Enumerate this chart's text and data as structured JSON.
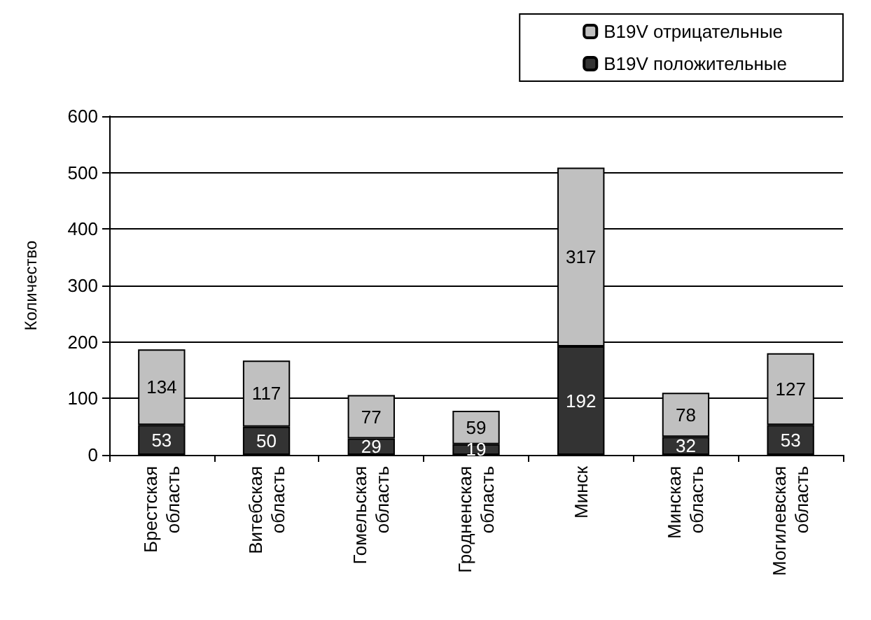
{
  "chart_data": {
    "type": "bar",
    "stacked": true,
    "ylabel": "Количество",
    "categories": [
      "Брестская\nобласть",
      "Витебская\nобласть",
      "Гомельская\nобласть",
      "Гродненская\nобласть",
      "Минск",
      "Минская\nобласть",
      "Могилевская\nобласть"
    ],
    "series": [
      {
        "name": "B19V положительные",
        "color": "#333333",
        "values": [
          53,
          50,
          29,
          19,
          192,
          32,
          53
        ]
      },
      {
        "name": "B19V отрицательные",
        "color": "#c0c0c0",
        "values": [
          134,
          117,
          77,
          59,
          317,
          78,
          127
        ]
      }
    ],
    "ylim": [
      0,
      600
    ],
    "yticks": [
      0,
      100,
      200,
      300,
      400,
      500,
      600
    ],
    "grid": "y",
    "legend": "top right",
    "data_labels": true
  }
}
